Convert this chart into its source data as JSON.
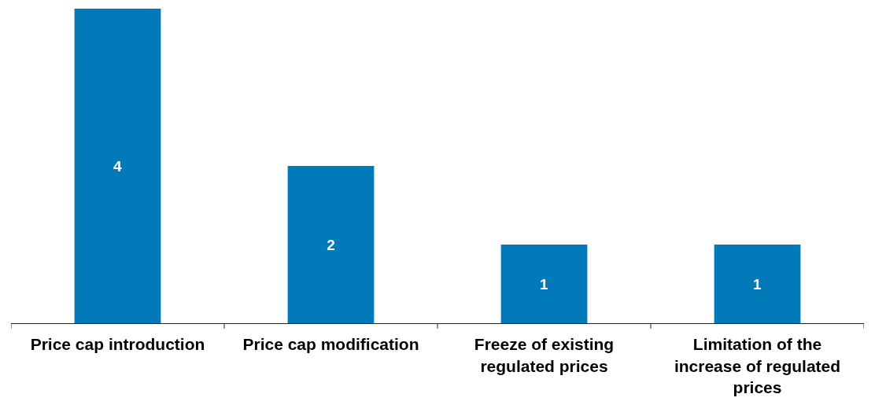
{
  "chart_data": {
    "type": "bar",
    "categories": [
      "Price cap introduction",
      "Price cap modification",
      "Freeze of existing regulated prices",
      "Limitation of the increase of regulated prices"
    ],
    "values": [
      4,
      2,
      1,
      1
    ],
    "color": "#0279b9",
    "data_labels": true
  }
}
